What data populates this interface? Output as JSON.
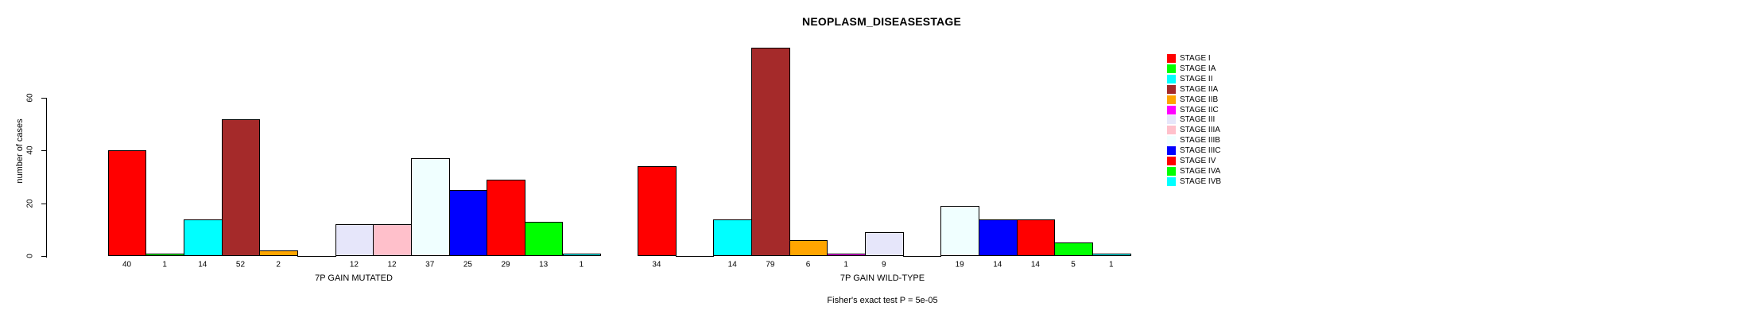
{
  "chart_data": {
    "type": "bar",
    "title": "NEOPLASM_DISEASESTAGE",
    "ylabel": "number of cases",
    "xlabel": "",
    "annotation": "Fisher's exact test P = 5e-05",
    "categories": [
      "STAGE I",
      "STAGE IA",
      "STAGE II",
      "STAGE IIA",
      "STAGE IIB",
      "STAGE IIC",
      "STAGE III",
      "STAGE IIIA",
      "STAGE IIIB",
      "STAGE IIIC",
      "STAGE IV",
      "STAGE IVA",
      "STAGE IVB"
    ],
    "colors": [
      "#FF0000",
      "#00FF00",
      "#00FFFF",
      "#A52A2A",
      "#FFA500",
      "#FF00FF",
      "#E6E6FA",
      "#FFC0CB",
      "#F0FFFF",
      "#0000FF",
      "#FF0000",
      "#00FF00",
      "#00FFFF"
    ],
    "series": [
      {
        "name": "7P GAIN MUTATED",
        "values": [
          40,
          1,
          14,
          52,
          2,
          0,
          12,
          12,
          37,
          25,
          29,
          13,
          1
        ]
      },
      {
        "name": "7P GAIN WILD-TYPE",
        "values": [
          34,
          0,
          14,
          79,
          6,
          1,
          9,
          0,
          19,
          14,
          14,
          5,
          1
        ]
      }
    ],
    "value_labels_shown": true,
    "ylim": [
      0,
      60
    ],
    "y_ticks": [
      0,
      20,
      40,
      60
    ],
    "grid": false,
    "legend_position": "right",
    "bar_border_color": "#000000",
    "background_color": "#FFFFFF"
  }
}
